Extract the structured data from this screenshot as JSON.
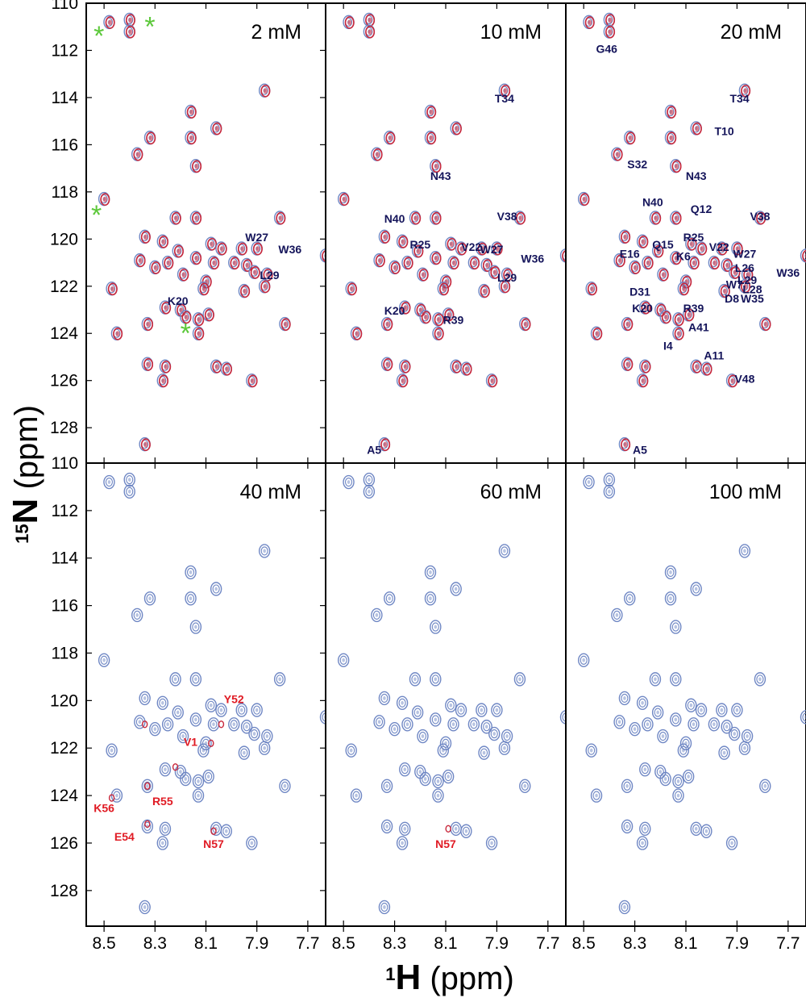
{
  "figure": {
    "y_axis_title": {
      "sup": "15",
      "main": "N",
      "unit": "(ppm)"
    },
    "x_axis_title": {
      "sup": "1",
      "main": "H",
      "unit": "(ppm)"
    },
    "x_ticks": [
      "8.5",
      "8.3",
      "8.1",
      "7.9",
      "7.7"
    ],
    "y_ticks": [
      "110",
      "112",
      "114",
      "116",
      "118",
      "120",
      "122",
      "124",
      "126",
      "128"
    ],
    "colors": {
      "blue": "#6f87c4",
      "red": "#c8283c",
      "navy": "#14145a",
      "label_red": "#e01b24",
      "green": "#5cc83a"
    }
  },
  "chart_data": [
    {
      "type": "scatter",
      "title": "2 mM",
      "xlabel": "1H (ppm)",
      "ylabel": "15N (ppm)",
      "xlim": [
        8.57,
        7.63
      ],
      "ylim": [
        110,
        129.5
      ],
      "x_reversed": true,
      "y_reversed": true,
      "grid": false,
      "red_overlay": true,
      "labels": [
        {
          "text": "W27",
          "x": 7.9,
          "y": 120.1
        },
        {
          "text": "W36",
          "x": 7.77,
          "y": 120.6
        },
        {
          "text": "L29",
          "x": 7.85,
          "y": 121.7
        },
        {
          "text": "K20",
          "x": 8.21,
          "y": 122.8
        }
      ],
      "markers": [
        {
          "x": 8.52,
          "y": 111.3
        },
        {
          "x": 8.32,
          "y": 110.9
        },
        {
          "x": 8.53,
          "y": 118.9
        },
        {
          "x": 8.18,
          "y": 123.9
        }
      ]
    },
    {
      "type": "scatter",
      "title": "10 mM",
      "xlabel": "1H (ppm)",
      "ylabel": "15N (ppm)",
      "xlim": [
        8.57,
        7.63
      ],
      "ylim": [
        110,
        129.5
      ],
      "x_reversed": true,
      "y_reversed": true,
      "grid": false,
      "red_overlay": true,
      "labels": [
        {
          "text": "T34",
          "x": 7.87,
          "y": 114.2
        },
        {
          "text": "N43",
          "x": 8.12,
          "y": 117.5
        },
        {
          "text": "N40",
          "x": 8.3,
          "y": 119.3
        },
        {
          "text": "V38",
          "x": 7.86,
          "y": 119.2
        },
        {
          "text": "R25",
          "x": 8.2,
          "y": 120.4
        },
        {
          "text": "V22",
          "x": 8.0,
          "y": 120.5
        },
        {
          "text": "W27",
          "x": 7.92,
          "y": 120.6
        },
        {
          "text": "W36",
          "x": 7.76,
          "y": 121.0
        },
        {
          "text": "L29",
          "x": 7.86,
          "y": 121.8
        },
        {
          "text": "K20",
          "x": 8.3,
          "y": 123.2
        },
        {
          "text": "R39",
          "x": 8.07,
          "y": 123.6
        },
        {
          "text": "A5",
          "x": 8.38,
          "y": 129.1
        }
      ],
      "markers": []
    },
    {
      "type": "scatter",
      "title": "20 mM",
      "xlabel": "1H (ppm)",
      "ylabel": "15N (ppm)",
      "xlim": [
        8.57,
        7.63
      ],
      "ylim": [
        110,
        129.5
      ],
      "x_reversed": true,
      "y_reversed": true,
      "grid": false,
      "red_overlay": true,
      "labels": [
        {
          "text": "G46",
          "x": 8.41,
          "y": 112.1
        },
        {
          "text": "T34",
          "x": 7.89,
          "y": 114.2
        },
        {
          "text": "T10",
          "x": 7.95,
          "y": 115.6
        },
        {
          "text": "S32",
          "x": 8.29,
          "y": 117.0
        },
        {
          "text": "N43",
          "x": 8.06,
          "y": 117.5
        },
        {
          "text": "N40",
          "x": 8.23,
          "y": 118.6
        },
        {
          "text": "Q12",
          "x": 8.04,
          "y": 118.9
        },
        {
          "text": "V38",
          "x": 7.81,
          "y": 119.2
        },
        {
          "text": "R25",
          "x": 8.07,
          "y": 120.1
        },
        {
          "text": "Q15",
          "x": 8.19,
          "y": 120.4
        },
        {
          "text": "V22",
          "x": 7.97,
          "y": 120.5
        },
        {
          "text": "E16",
          "x": 8.32,
          "y": 120.8
        },
        {
          "text": "W27",
          "x": 7.87,
          "y": 120.8
        },
        {
          "text": "K6",
          "x": 8.11,
          "y": 120.9
        },
        {
          "text": "L26",
          "x": 7.87,
          "y": 121.4
        },
        {
          "text": "W36",
          "x": 7.7,
          "y": 121.6
        },
        {
          "text": "L29",
          "x": 7.86,
          "y": 121.9
        },
        {
          "text": "W7",
          "x": 7.91,
          "y": 122.1
        },
        {
          "text": "D31",
          "x": 8.28,
          "y": 122.4
        },
        {
          "text": "L28",
          "x": 7.84,
          "y": 122.3
        },
        {
          "text": "D8",
          "x": 7.92,
          "y": 122.7
        },
        {
          "text": "W35",
          "x": 7.84,
          "y": 122.7
        },
        {
          "text": "K20",
          "x": 8.27,
          "y": 123.1
        },
        {
          "text": "R39",
          "x": 8.07,
          "y": 123.1
        },
        {
          "text": "A41",
          "x": 8.05,
          "y": 123.9
        },
        {
          "text": "I4",
          "x": 8.17,
          "y": 124.7
        },
        {
          "text": "A11",
          "x": 7.99,
          "y": 125.1
        },
        {
          "text": "V48",
          "x": 7.87,
          "y": 126.1
        },
        {
          "text": "A5",
          "x": 8.28,
          "y": 129.1
        }
      ],
      "markers": []
    },
    {
      "type": "scatter",
      "title": "40 mM",
      "xlabel": "1H (ppm)",
      "ylabel": "15N (ppm)",
      "xlim": [
        8.57,
        7.63
      ],
      "ylim": [
        110,
        129.5
      ],
      "x_reversed": true,
      "y_reversed": true,
      "grid": false,
      "red_overlay": false,
      "red_peaks": [
        {
          "x": 8.34,
          "y": 121.0
        },
        {
          "x": 8.33,
          "y": 123.6
        },
        {
          "x": 8.33,
          "y": 125.2
        },
        {
          "x": 8.47,
          "y": 124.1
        },
        {
          "x": 8.08,
          "y": 121.8
        },
        {
          "x": 8.04,
          "y": 121.0
        },
        {
          "x": 8.07,
          "y": 125.5
        },
        {
          "x": 8.22,
          "y": 122.8
        }
      ],
      "labels": [
        {
          "text": "Y52",
          "x": 7.99,
          "y": 120.1
        },
        {
          "text": "V1",
          "x": 8.16,
          "y": 121.9
        },
        {
          "text": "K56",
          "x": 8.5,
          "y": 124.7
        },
        {
          "text": "R55",
          "x": 8.27,
          "y": 124.4
        },
        {
          "text": "E54",
          "x": 8.42,
          "y": 125.9
        },
        {
          "text": "N57",
          "x": 8.07,
          "y": 126.2
        }
      ],
      "markers": []
    },
    {
      "type": "scatter",
      "title": "60 mM",
      "xlabel": "1H (ppm)",
      "ylabel": "15N (ppm)",
      "xlim": [
        8.57,
        7.63
      ],
      "ylim": [
        110,
        129.5
      ],
      "x_reversed": true,
      "y_reversed": true,
      "grid": false,
      "red_overlay": false,
      "red_peaks": [
        {
          "x": 8.09,
          "y": 125.4
        }
      ],
      "labels": [
        {
          "text": "N57",
          "x": 8.1,
          "y": 126.2
        }
      ],
      "markers": []
    },
    {
      "type": "scatter",
      "title": "100 mM",
      "xlabel": "1H (ppm)",
      "ylabel": "15N (ppm)",
      "xlim": [
        8.57,
        7.63
      ],
      "ylim": [
        110,
        129.5
      ],
      "x_reversed": true,
      "y_reversed": true,
      "grid": false,
      "red_overlay": false,
      "red_peaks": [],
      "labels": [],
      "markers": []
    }
  ],
  "peaks": [
    {
      "x": 8.48,
      "y": 110.8
    },
    {
      "x": 8.4,
      "y": 110.7
    },
    {
      "x": 8.4,
      "y": 111.2
    },
    {
      "x": 7.87,
      "y": 113.7
    },
    {
      "x": 8.16,
      "y": 114.6
    },
    {
      "x": 8.06,
      "y": 115.3
    },
    {
      "x": 8.32,
      "y": 115.7
    },
    {
      "x": 8.16,
      "y": 115.7
    },
    {
      "x": 8.37,
      "y": 116.4
    },
    {
      "x": 8.14,
      "y": 116.9
    },
    {
      "x": 8.5,
      "y": 118.3
    },
    {
      "x": 8.22,
      "y": 119.1
    },
    {
      "x": 8.14,
      "y": 119.1
    },
    {
      "x": 7.81,
      "y": 119.1
    },
    {
      "x": 8.34,
      "y": 119.9
    },
    {
      "x": 8.27,
      "y": 120.1
    },
    {
      "x": 8.08,
      "y": 120.2
    },
    {
      "x": 8.04,
      "y": 120.4
    },
    {
      "x": 7.96,
      "y": 120.4
    },
    {
      "x": 7.9,
      "y": 120.4
    },
    {
      "x": 8.21,
      "y": 120.5
    },
    {
      "x": 8.14,
      "y": 120.8
    },
    {
      "x": 7.63,
      "y": 120.7
    },
    {
      "x": 8.36,
      "y": 120.9
    },
    {
      "x": 8.25,
      "y": 121.0
    },
    {
      "x": 8.07,
      "y": 121.0
    },
    {
      "x": 7.99,
      "y": 121.0
    },
    {
      "x": 7.94,
      "y": 121.1
    },
    {
      "x": 8.3,
      "y": 121.2
    },
    {
      "x": 7.91,
      "y": 121.4
    },
    {
      "x": 8.19,
      "y": 121.5
    },
    {
      "x": 7.86,
      "y": 121.5
    },
    {
      "x": 8.1,
      "y": 121.8
    },
    {
      "x": 7.87,
      "y": 122.0
    },
    {
      "x": 8.47,
      "y": 122.1
    },
    {
      "x": 8.11,
      "y": 122.1
    },
    {
      "x": 7.95,
      "y": 122.2
    },
    {
      "x": 8.26,
      "y": 122.9
    },
    {
      "x": 8.2,
      "y": 123.0
    },
    {
      "x": 8.09,
      "y": 123.2
    },
    {
      "x": 8.18,
      "y": 123.3
    },
    {
      "x": 8.13,
      "y": 123.4
    },
    {
      "x": 8.33,
      "y": 123.6
    },
    {
      "x": 7.79,
      "y": 123.6
    },
    {
      "x": 8.45,
      "y": 124.0
    },
    {
      "x": 8.13,
      "y": 124.0
    },
    {
      "x": 8.33,
      "y": 125.3
    },
    {
      "x": 8.26,
      "y": 125.4
    },
    {
      "x": 8.06,
      "y": 125.4
    },
    {
      "x": 8.02,
      "y": 125.5
    },
    {
      "x": 8.27,
      "y": 126.0
    },
    {
      "x": 7.92,
      "y": 126.0
    },
    {
      "x": 8.34,
      "y": 128.7
    }
  ]
}
